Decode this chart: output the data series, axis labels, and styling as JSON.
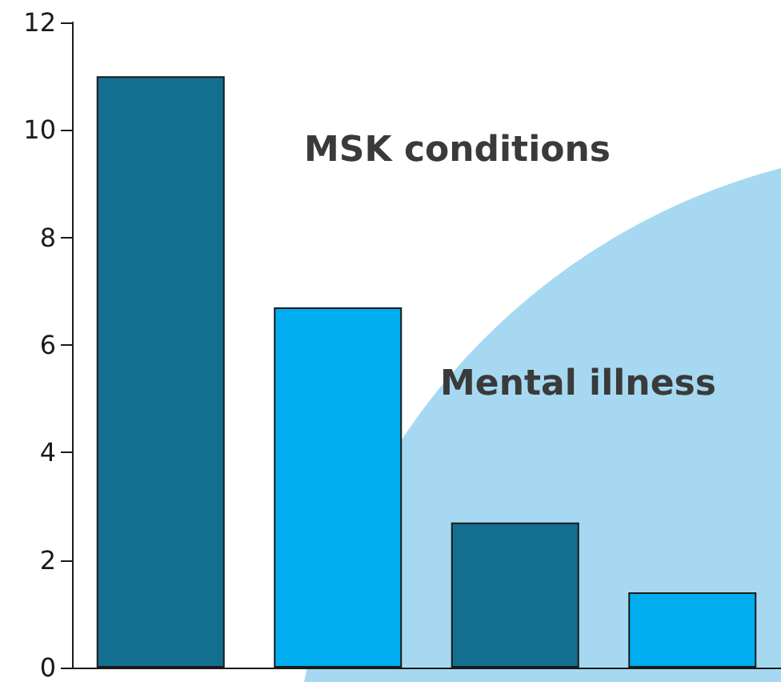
{
  "chart_data": {
    "type": "bar",
    "categories": [
      null,
      null,
      null,
      null
    ],
    "values": [
      11,
      6.7,
      2.7,
      1.4
    ],
    "colors": [
      "#136f8f",
      "#00adef",
      "#136f8f",
      "#00adef"
    ],
    "ylim": [
      0,
      12
    ],
    "yticks": [
      0,
      2,
      4,
      6,
      8,
      10,
      12
    ],
    "grid": false,
    "annotations": [
      "MSK conditions",
      "Mental illness"
    ]
  }
}
